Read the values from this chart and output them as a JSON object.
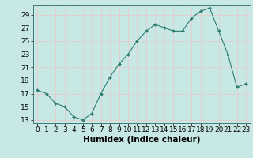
{
  "x": [
    0,
    1,
    2,
    3,
    4,
    5,
    6,
    7,
    8,
    9,
    10,
    11,
    12,
    13,
    14,
    15,
    16,
    17,
    18,
    19,
    20,
    21,
    22,
    23
  ],
  "y": [
    17.5,
    17.0,
    15.5,
    15.0,
    13.5,
    13.0,
    14.0,
    17.0,
    19.5,
    21.5,
    23.0,
    25.0,
    26.5,
    27.5,
    27.0,
    26.5,
    26.5,
    28.5,
    29.5,
    30.0,
    26.5,
    23.0,
    18.0,
    18.5
  ],
  "xlabel": "Humidex (Indice chaleur)",
  "line_color": "#2e7d6e",
  "marker_color": "#2e7d6e",
  "bg_color": "#c8e8e5",
  "grid_color": "#e8c8c8",
  "ylim": [
    12.5,
    30.5
  ],
  "xlim": [
    -0.5,
    23.5
  ],
  "yticks": [
    13,
    15,
    17,
    19,
    21,
    23,
    25,
    27,
    29
  ],
  "xtick_labels": [
    "0",
    "1",
    "2",
    "3",
    "4",
    "5",
    "6",
    "7",
    "8",
    "9",
    "10",
    "11",
    "12",
    "13",
    "14",
    "15",
    "16",
    "17",
    "18",
    "19",
    "20",
    "21",
    "22",
    "23"
  ],
  "label_fontsize": 7.5,
  "tick_fontsize": 6.5
}
